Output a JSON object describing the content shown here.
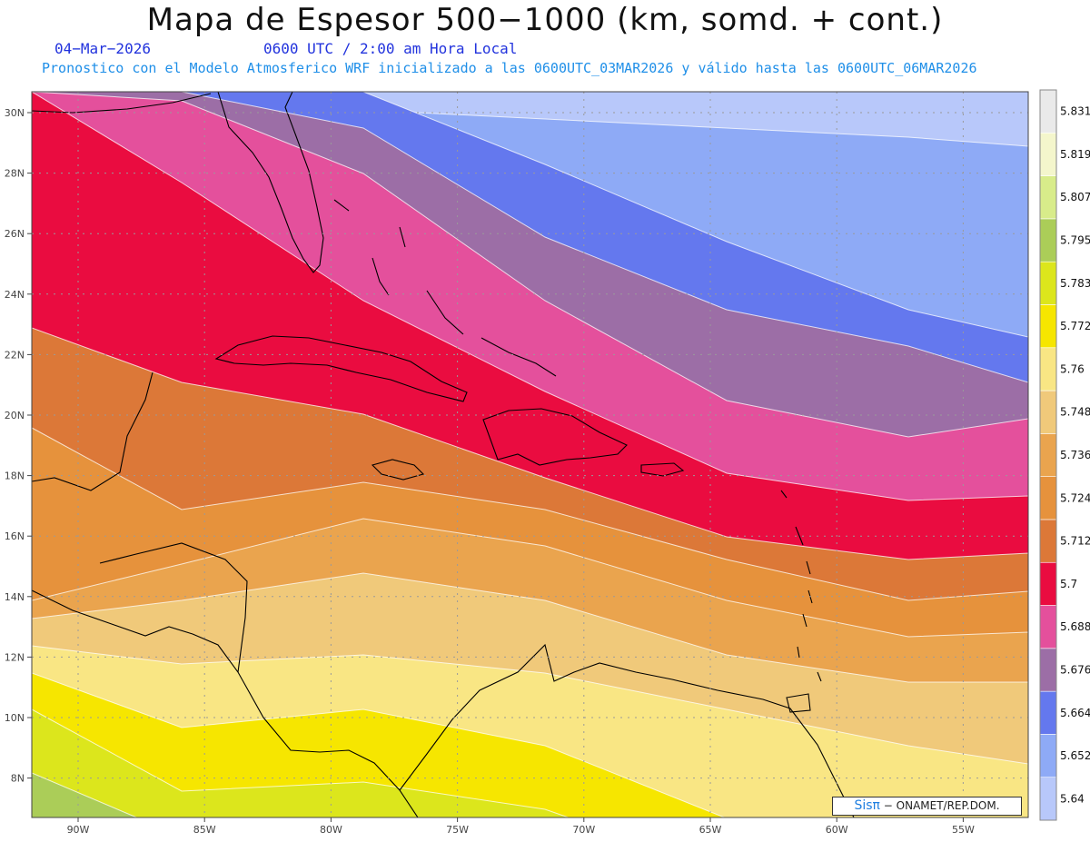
{
  "header": {
    "title": "Mapa de Espesor 500−1000 (km, somd. + cont.)",
    "date": "04−Mar−2026",
    "utc_time": "0600 UTC / 2:00 am Hora Local",
    "forecast_line": "Pronostico con el Modelo Atmosferico WRF inicializado a las 0600UTC_03MAR2026 y válido hasta las  0600UTC_06MAR2026"
  },
  "map": {
    "lat_labels": [
      "30N",
      "28N",
      "26N",
      "24N",
      "22N",
      "20N",
      "18N",
      "16N",
      "14N",
      "12N",
      "10N",
      "8N"
    ],
    "lon_labels": [
      "90W",
      "85W",
      "80W",
      "75W",
      "70W",
      "65W",
      "60W",
      "55W"
    ],
    "bands": [
      {
        "name": "band-5.640",
        "color": "#b8c8fa"
      },
      {
        "name": "band-5.652",
        "color": "#8eaaf6"
      },
      {
        "name": "band-5.664",
        "color": "#6478ee"
      },
      {
        "name": "band-5.676",
        "color": "#9c6ea6"
      },
      {
        "name": "band-5.688",
        "color": "#e4509c"
      },
      {
        "name": "band-5.700",
        "color": "#ea0c40"
      },
      {
        "name": "band-5.712",
        "color": "#dc7838"
      },
      {
        "name": "band-5.724",
        "color": "#e6923c"
      },
      {
        "name": "band-5.736",
        "color": "#eaa44e"
      },
      {
        "name": "band-5.748",
        "color": "#f0c97a"
      },
      {
        "name": "band-5.760",
        "color": "#f9e684"
      },
      {
        "name": "band-5.772",
        "color": "#f6e600"
      },
      {
        "name": "band-5.783",
        "color": "#dce61c"
      },
      {
        "name": "band-5.795",
        "color": "#abcd58"
      },
      {
        "name": "band-5.807",
        "color": "#d8ec8a"
      }
    ]
  },
  "colorbar": {
    "colors": [
      "#b8c8fa",
      "#8eaaf6",
      "#6478ee",
      "#9c6ea6",
      "#e4509c",
      "#ea0c40",
      "#dc7838",
      "#e6923c",
      "#eaa44e",
      "#f0c97a",
      "#f9e684",
      "#f6e600",
      "#dce61c",
      "#abcd58",
      "#d8ec8a",
      "#f4f6cc",
      "#eaeaea"
    ],
    "labels": [
      "5.64",
      "5.652",
      "5.664",
      "5.676",
      "5.688",
      "5.7",
      "5.712",
      "5.724",
      "5.736",
      "5.748",
      "5.76",
      "5.772",
      "5.783",
      "5.795",
      "5.807",
      "5.819",
      "5.831"
    ]
  },
  "credit": {
    "logo": "Sisπ",
    "text": "− ONAMET/REP.DOM."
  }
}
